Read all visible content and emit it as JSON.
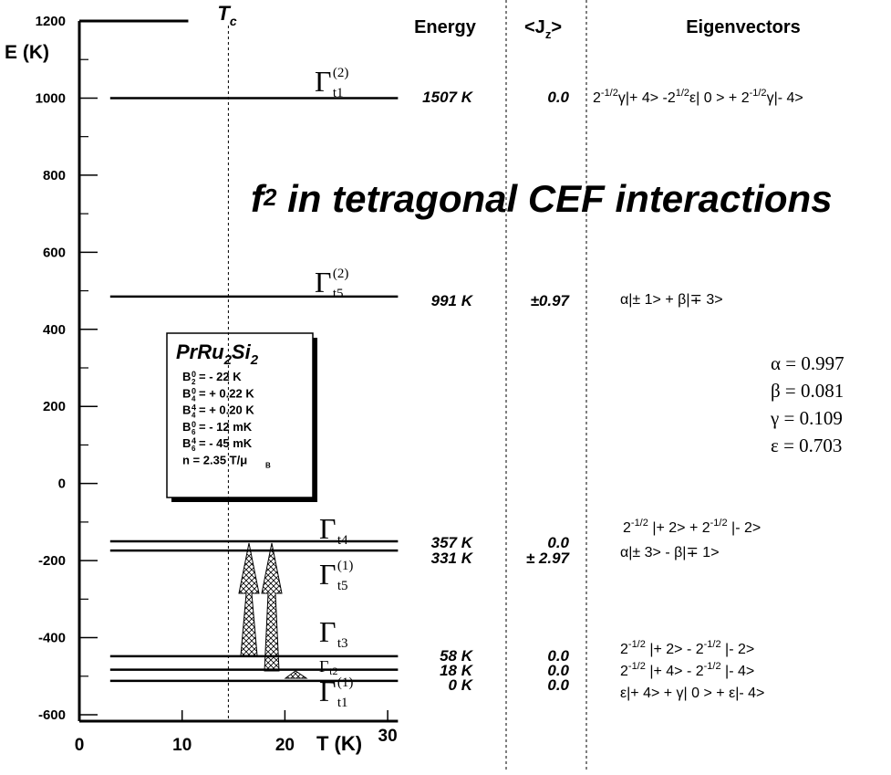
{
  "chart_data": {
    "type": "level",
    "title_parts": [
      "f",
      "2",
      " in tetragonal CEF interactions"
    ],
    "xlabel": "T (K)",
    "ylabel": "E (K)",
    "xlim": [
      0,
      31
    ],
    "ylim": [
      -600,
      1200
    ],
    "xticks": [
      0,
      10,
      20,
      30
    ],
    "yticks": [
      -600,
      -400,
      -200,
      0,
      200,
      400,
      600,
      800,
      1000,
      1200
    ],
    "yminorticks": [
      -500,
      -300,
      -100,
      100,
      300,
      500,
      700,
      900,
      1100
    ],
    "tc": {
      "parts": [
        "T",
        "c"
      ],
      "value": 14.5
    },
    "top_bar": {
      "value": 1200,
      "x_end": 10.6
    },
    "t_range": [
      3,
      31
    ],
    "headers": {
      "energy": "Energy",
      "jz": [
        "<J",
        "z",
        ">"
      ],
      "eigenvectors": "Eigenvectors"
    },
    "levels": [
      {
        "value": 1000,
        "gamma": {
          "symbol": "Γ",
          "sub": "t1",
          "sup": "(2)"
        },
        "energy_label": "1507 K",
        "jz": "0.0",
        "eigenvector": [
          "2",
          "-1/2",
          "γ|+ 4> -2",
          "1/2",
          "ε| 0 > + 2",
          "-1/2",
          "γ|- 4>"
        ]
      },
      {
        "value": 485,
        "gamma": {
          "symbol": "Γ",
          "sub": "t5",
          "sup": "(2)"
        },
        "energy_label": "991 K",
        "jz": "±0.97",
        "eigenvector": [
          "α|± 1> + β|∓ 3>"
        ]
      },
      {
        "value": -150,
        "gamma": {
          "symbol": "Γ",
          "sub": "t4"
        },
        "energy_label": "357 K",
        "jz": "0.0",
        "eigenvector": [
          "2",
          "-1/2",
          " |+ 2> + 2",
          "-1/2",
          " |- 2>"
        ]
      },
      {
        "value": -174,
        "gamma": {
          "symbol": "Γ",
          "sub": "t5",
          "sup": "(1)"
        },
        "energy_label": "331 K",
        "jz": "± 2.97",
        "eigenvector": [
          "α|± 3> - β|∓ 1>"
        ]
      },
      {
        "value": -448,
        "gamma": {
          "symbol": "Γ",
          "sub": "t3"
        },
        "energy_label": "58 K",
        "jz": "0.0",
        "eigenvector": [
          "2",
          "-1/2",
          " |+ 2> - 2",
          "-1/2",
          " |- 2>"
        ]
      },
      {
        "value": -483,
        "gamma": {
          "symbol": "Γ",
          "sub": "t2"
        },
        "energy_label": "18 K",
        "jz": "0.0",
        "eigenvector": [
          "2",
          "-1/2",
          " |+ 4> - 2",
          "-1/2",
          " |- 4>"
        ]
      },
      {
        "value": -512,
        "gamma": {
          "symbol": "Γ",
          "sub": "t1",
          "sup": "(1)"
        },
        "energy_label": "0 K",
        "jz": "0.0",
        "eigenvector": [
          "ε|+ 4> + γ| 0 > + ε|- 4>"
        ]
      }
    ],
    "parameters": [
      "α = 0.997",
      "β = 0.081",
      "γ = 0.109",
      "ε = 0.703"
    ],
    "compound": {
      "parts": [
        "PrRu",
        "2",
        "Si",
        "2"
      ],
      "coefficients": [
        {
          "base": "B",
          "sup": "0",
          "sub": "2",
          "rest": "= - 22 K"
        },
        {
          "base": "B",
          "sup": "0",
          "sub": "4",
          "rest": "= + 0.22 K"
        },
        {
          "base": "B",
          "sup": "4",
          "sub": "4",
          "rest": "= + 0.20 K"
        },
        {
          "base": "B",
          "sup": "0",
          "sub": "6",
          "rest": "= - 12 mK"
        },
        {
          "base": "B",
          "sup": "4",
          "sub": "6",
          "rest": "= - 45 mK"
        },
        {
          "base": "n  = 2.35 T/μ",
          "sub": "B"
        }
      ]
    }
  }
}
